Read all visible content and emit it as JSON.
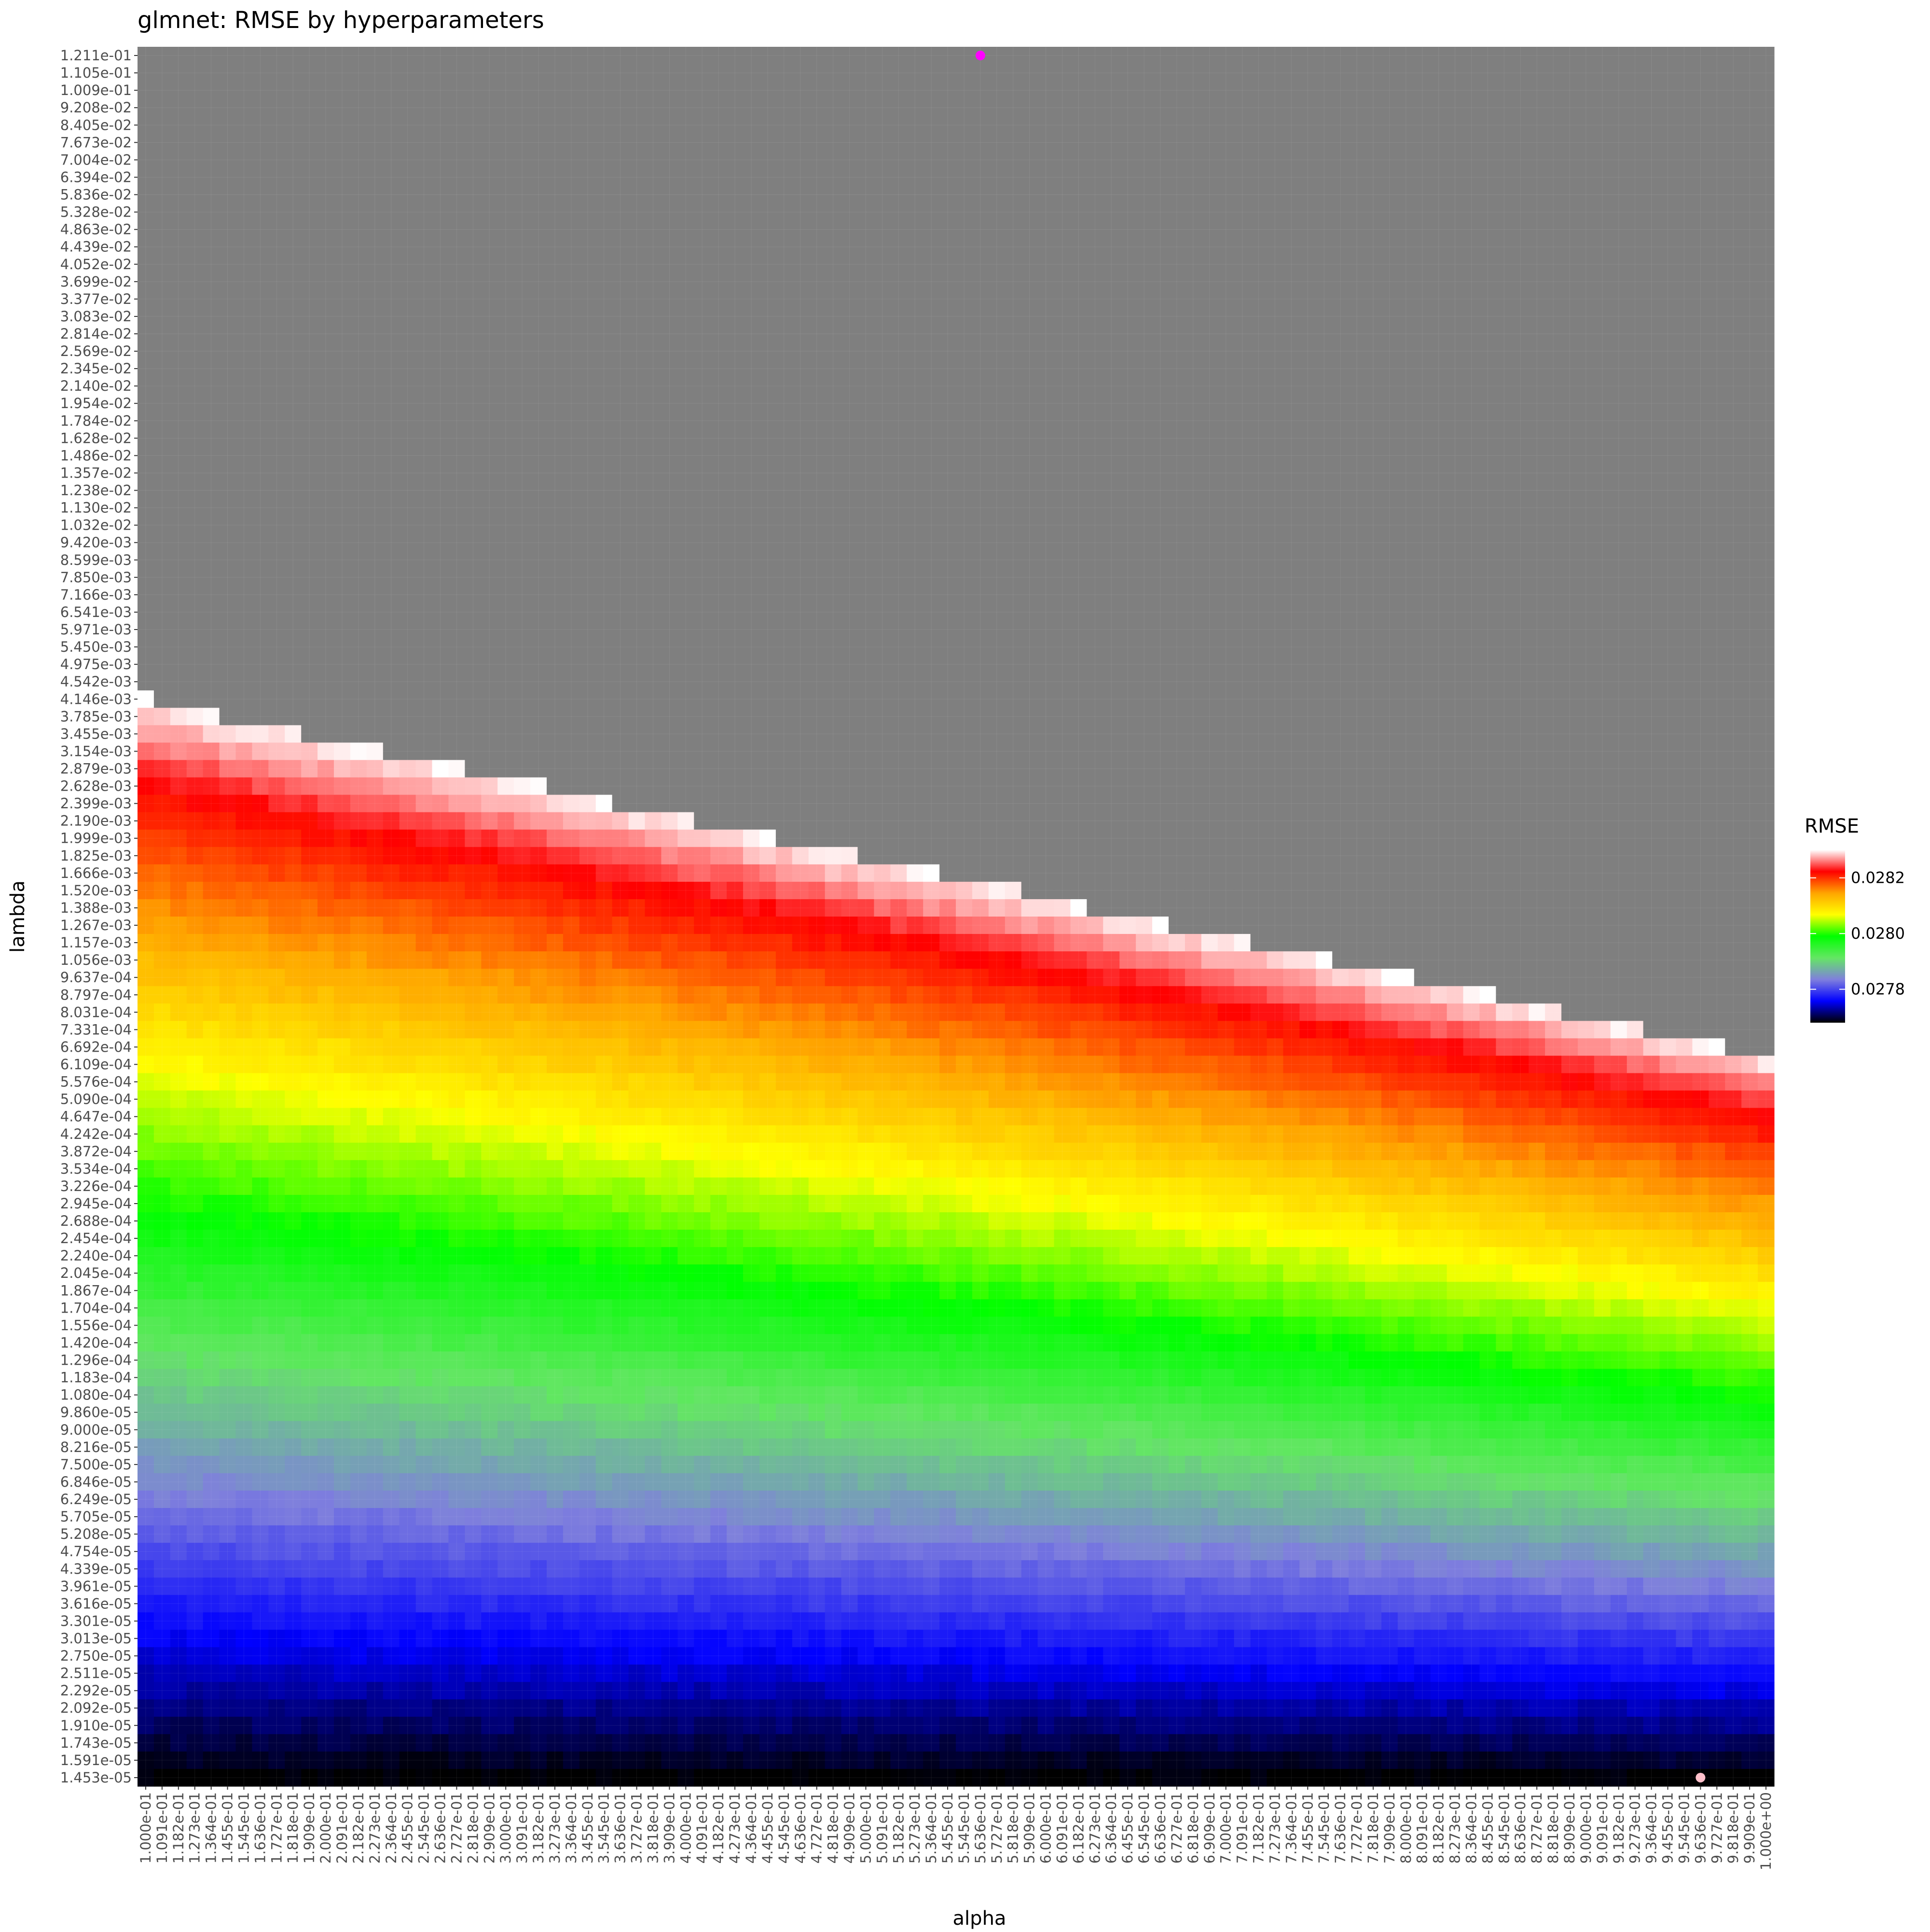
{
  "chart_data": {
    "type": "heatmap",
    "title": "glmnet: RMSE by hyperparameters",
    "xlabel": "alpha",
    "ylabel": "lambda",
    "x_tick_labels": [
      "1.000e-01",
      "1.091e-01",
      "1.182e-01",
      "1.273e-01",
      "1.364e-01",
      "1.455e-01",
      "1.545e-01",
      "1.636e-01",
      "1.727e-01",
      "1.818e-01",
      "1.909e-01",
      "2.000e-01",
      "2.091e-01",
      "2.182e-01",
      "2.273e-01",
      "2.364e-01",
      "2.455e-01",
      "2.545e-01",
      "2.636e-01",
      "2.727e-01",
      "2.818e-01",
      "2.909e-01",
      "3.000e-01",
      "3.091e-01",
      "3.182e-01",
      "3.273e-01",
      "3.364e-01",
      "3.455e-01",
      "3.545e-01",
      "3.636e-01",
      "3.727e-01",
      "3.818e-01",
      "3.909e-01",
      "4.000e-01",
      "4.091e-01",
      "4.182e-01",
      "4.273e-01",
      "4.364e-01",
      "4.455e-01",
      "4.545e-01",
      "4.636e-01",
      "4.727e-01",
      "4.818e-01",
      "4.909e-01",
      "5.000e-01",
      "5.091e-01",
      "5.182e-01",
      "5.273e-01",
      "5.364e-01",
      "5.455e-01",
      "5.545e-01",
      "5.636e-01",
      "5.727e-01",
      "5.818e-01",
      "5.909e-01",
      "6.000e-01",
      "6.091e-01",
      "6.182e-01",
      "6.273e-01",
      "6.364e-01",
      "6.455e-01",
      "6.545e-01",
      "6.636e-01",
      "6.727e-01",
      "6.818e-01",
      "6.909e-01",
      "7.000e-01",
      "7.091e-01",
      "7.182e-01",
      "7.273e-01",
      "7.364e-01",
      "7.455e-01",
      "7.545e-01",
      "7.636e-01",
      "7.727e-01",
      "7.818e-01",
      "7.909e-01",
      "8.000e-01",
      "8.091e-01",
      "8.182e-01",
      "8.273e-01",
      "8.364e-01",
      "8.455e-01",
      "8.545e-01",
      "8.636e-01",
      "8.727e-01",
      "8.818e-01",
      "8.909e-01",
      "9.000e-01",
      "9.091e-01",
      "9.182e-01",
      "9.273e-01",
      "9.364e-01",
      "9.455e-01",
      "9.545e-01",
      "9.636e-01",
      "9.727e-01",
      "9.818e-01",
      "9.909e-01",
      "1.000e+00"
    ],
    "y_tick_labels": [
      "1.211e-01",
      "1.105e-01",
      "1.009e-01",
      "9.208e-02",
      "8.405e-02",
      "7.673e-02",
      "7.004e-02",
      "6.394e-02",
      "5.836e-02",
      "5.328e-02",
      "4.863e-02",
      "4.439e-02",
      "4.052e-02",
      "3.699e-02",
      "3.377e-02",
      "3.083e-02",
      "2.814e-02",
      "2.569e-02",
      "2.345e-02",
      "2.140e-02",
      "1.954e-02",
      "1.784e-02",
      "1.628e-02",
      "1.486e-02",
      "1.357e-02",
      "1.238e-02",
      "1.130e-02",
      "1.032e-02",
      "9.420e-03",
      "8.599e-03",
      "7.850e-03",
      "7.166e-03",
      "6.541e-03",
      "5.971e-03",
      "5.450e-03",
      "4.975e-03",
      "4.542e-03",
      "4.146e-03",
      "3.785e-03",
      "3.455e-03",
      "3.154e-03",
      "2.879e-03",
      "2.628e-03",
      "2.399e-03",
      "2.190e-03",
      "1.999e-03",
      "1.825e-03",
      "1.666e-03",
      "1.520e-03",
      "1.388e-03",
      "1.267e-03",
      "1.157e-03",
      "1.056e-03",
      "9.637e-04",
      "8.797e-04",
      "8.031e-04",
      "7.331e-04",
      "6.692e-04",
      "6.109e-04",
      "5.576e-04",
      "5.090e-04",
      "4.647e-04",
      "4.242e-04",
      "3.872e-04",
      "3.534e-04",
      "3.226e-04",
      "2.945e-04",
      "2.688e-04",
      "2.454e-04",
      "2.240e-04",
      "2.045e-04",
      "1.867e-04",
      "1.704e-04",
      "1.556e-04",
      "1.420e-04",
      "1.296e-04",
      "1.183e-04",
      "1.080e-04",
      "9.860e-05",
      "9.000e-05",
      "8.216e-05",
      "7.500e-05",
      "6.846e-05",
      "6.249e-05",
      "5.705e-05",
      "5.208e-05",
      "4.754e-05",
      "4.339e-05",
      "3.961e-05",
      "3.616e-05",
      "3.301e-05",
      "3.013e-05",
      "2.750e-05",
      "2.511e-05",
      "2.292e-05",
      "2.092e-05",
      "1.910e-05",
      "1.743e-05",
      "1.591e-05",
      "1.453e-05"
    ],
    "surface_model": {
      "missing_color": "#7f7f7f",
      "missing_boundary_row_at_first_col": 37,
      "missing_boundary_row_at_last_col": 57.5,
      "ridge_row_at_first_col": 42,
      "ridge_row_at_last_col": 61,
      "note_ridge": "red ridge of the white/red band"
    },
    "legend": {
      "title": "RMSE",
      "ticks": [
        0.0278,
        0.028,
        0.0282
      ],
      "tick_labels": [
        "0.0278",
        "0.0280",
        "0.0282"
      ],
      "range": [
        0.02768,
        0.0283
      ],
      "colors": [
        "#000000",
        "#0000ff",
        "#7f7fdd",
        "#64e664",
        "#00ff00",
        "#ffff00",
        "#ffa500",
        "#ff0000",
        "#ffffff"
      ],
      "position": "right"
    },
    "markers": [
      {
        "name": "max",
        "alpha": "5.636e-01",
        "lambda": "1.211e-01",
        "color": "#ff00ff"
      },
      {
        "name": "min",
        "alpha": "9.636e-01",
        "lambda": "1.453e-05",
        "color": "#ffc0cb"
      }
    ]
  }
}
